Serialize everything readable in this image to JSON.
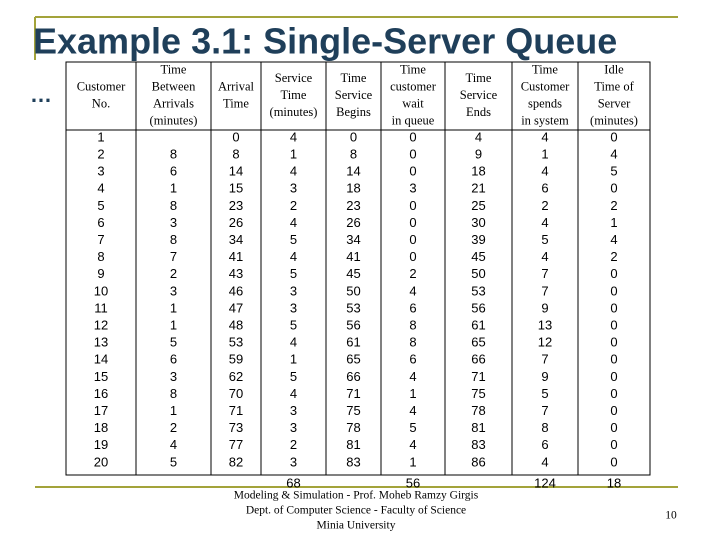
{
  "title": "Example 3.1: Single-Server Queue",
  "bullet": "…",
  "table": {
    "headers": [
      [
        "Customer",
        "No."
      ],
      [
        "Time",
        "Between",
        "Arrivals",
        "(minutes)"
      ],
      [
        "Arrival",
        "Time"
      ],
      [
        "Service",
        "Time",
        "(minutes)"
      ],
      [
        "Time",
        "Service",
        "Begins"
      ],
      [
        "Time",
        "customer",
        "wait",
        "in queue"
      ],
      [
        "Time",
        "Service",
        "Ends"
      ],
      [
        "Time",
        "Customer",
        "spends",
        "in system"
      ],
      [
        "Idle",
        "Time of",
        "Server",
        "(minutes)"
      ]
    ],
    "rows": [
      [
        1,
        null,
        0,
        4,
        0,
        0,
        4,
        4,
        0
      ],
      [
        2,
        8,
        8,
        1,
        8,
        0,
        9,
        1,
        4
      ],
      [
        3,
        6,
        14,
        4,
        14,
        0,
        18,
        4,
        5
      ],
      [
        4,
        1,
        15,
        3,
        18,
        3,
        21,
        6,
        0
      ],
      [
        5,
        8,
        23,
        2,
        23,
        0,
        25,
        2,
        2
      ],
      [
        6,
        3,
        26,
        4,
        26,
        0,
        30,
        4,
        1
      ],
      [
        7,
        8,
        34,
        5,
        34,
        0,
        39,
        5,
        4
      ],
      [
        8,
        7,
        41,
        4,
        41,
        0,
        45,
        4,
        2
      ],
      [
        9,
        2,
        43,
        5,
        45,
        2,
        50,
        7,
        0
      ],
      [
        10,
        3,
        46,
        3,
        50,
        4,
        53,
        7,
        0
      ],
      [
        11,
        1,
        47,
        3,
        53,
        6,
        56,
        9,
        0
      ],
      [
        12,
        1,
        48,
        5,
        56,
        8,
        61,
        13,
        0
      ],
      [
        13,
        5,
        53,
        4,
        61,
        8,
        65,
        12,
        0
      ],
      [
        14,
        6,
        59,
        1,
        65,
        6,
        66,
        7,
        0
      ],
      [
        15,
        3,
        62,
        5,
        66,
        4,
        71,
        9,
        0
      ],
      [
        16,
        8,
        70,
        4,
        71,
        1,
        75,
        5,
        0
      ],
      [
        17,
        1,
        71,
        3,
        75,
        4,
        78,
        7,
        0
      ],
      [
        18,
        2,
        73,
        3,
        78,
        5,
        81,
        8,
        0
      ],
      [
        19,
        4,
        77,
        2,
        81,
        4,
        83,
        6,
        0
      ],
      [
        20,
        5,
        82,
        3,
        83,
        1,
        86,
        4,
        0
      ]
    ],
    "totals": [
      null,
      null,
      null,
      68,
      null,
      56,
      null,
      124,
      18
    ]
  },
  "footer": [
    "Modeling & Simulation - Prof. Moheb Ramzy Girgis",
    "Dept. of Computer Science - Faculty of Science",
    "Minia University"
  ],
  "page_number": 10
}
